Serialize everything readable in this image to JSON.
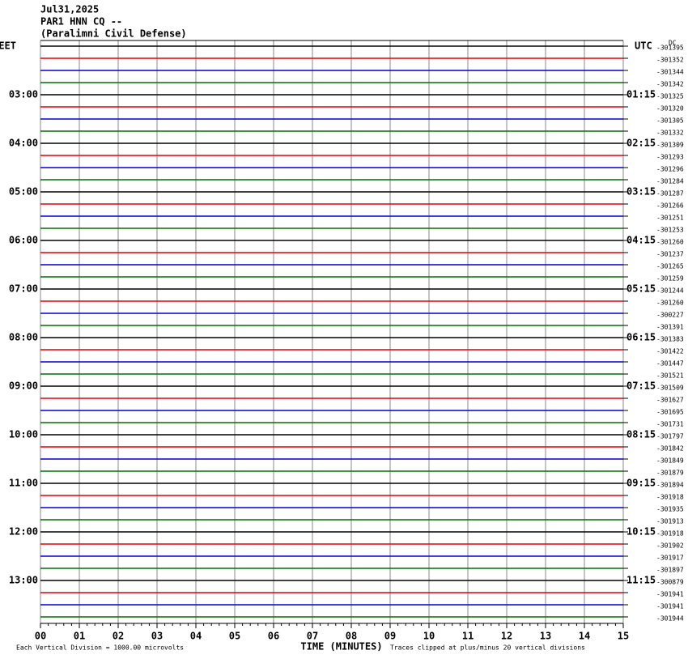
{
  "chart_data": {
    "type": "helicorder",
    "title_lines": [
      "Jul31,2025",
      "PAR1 HNN CQ --",
      "(Paralimni Civil Defense)"
    ],
    "left_zone": "EET",
    "right_zone": "UTC",
    "dc_label": "DC",
    "left_hours": [
      "03:00",
      "04:00",
      "05:00",
      "06:00",
      "07:00",
      "08:00",
      "09:00",
      "10:00",
      "11:00",
      "12:00",
      "13:00"
    ],
    "right_hours": [
      "01:15",
      "02:15",
      "03:15",
      "04:15",
      "05:15",
      "06:15",
      "07:15",
      "08:15",
      "09:15",
      "10:15",
      "11:15"
    ],
    "row_offsets": [
      -301395,
      -301352,
      -301344,
      -301342,
      -301325,
      -301320,
      -301305,
      -301332,
      -301309,
      -301293,
      -301296,
      -301284,
      -301287,
      -301266,
      -301251,
      -301253,
      -301260,
      -301237,
      -301265,
      -301259,
      -301244,
      -301260,
      -300227,
      -301391,
      -301383,
      -301422,
      -301447,
      -301521,
      -301509,
      -301627,
      -301695,
      -301731,
      -301797,
      -301842,
      -301849,
      -301879,
      -301894,
      -301918,
      -301935,
      -301913,
      -301918,
      -301902,
      -301917,
      -301897,
      -300879,
      -301941,
      -301941,
      -301944
    ],
    "trace_colors": [
      "#000000",
      "#e00000",
      "#0000d0",
      "#007000"
    ],
    "xlim": [
      0,
      15
    ],
    "xticks": [
      {
        "value": 0,
        "label": "00"
      },
      {
        "value": 1,
        "label": "01"
      },
      {
        "value": 2,
        "label": "02"
      },
      {
        "value": 3,
        "label": "03"
      },
      {
        "value": 4,
        "label": "04"
      },
      {
        "value": 5,
        "label": "05"
      },
      {
        "value": 6,
        "label": "06"
      },
      {
        "value": 7,
        "label": "07"
      },
      {
        "value": 8,
        "label": "08"
      },
      {
        "value": 9,
        "label": "09"
      },
      10,
      11,
      12,
      13,
      14,
      15
    ],
    "xlabel": "TIME (MINUTES)",
    "scale_note": "Each Vertical Division = 1000.00 microvolts",
    "clip_note": "Traces clipped at plus/minus 20 vertical divisions"
  }
}
